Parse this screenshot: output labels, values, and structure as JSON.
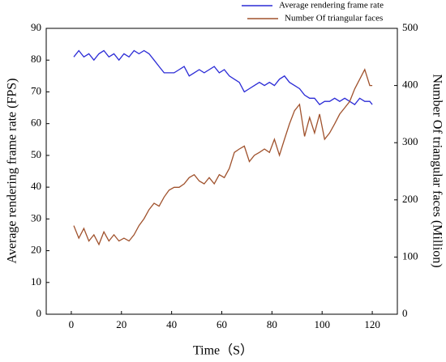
{
  "chart_data": {
    "type": "line",
    "xlabel": "Time（S）",
    "ylabel": "Average rendering frame rate (FPS)",
    "y2label": "Number Of triangular faces (Million)",
    "x": [
      1,
      3,
      5,
      7,
      9,
      11,
      13,
      15,
      17,
      19,
      21,
      23,
      25,
      27,
      29,
      31,
      33,
      35,
      37,
      39,
      41,
      43,
      45,
      47,
      49,
      51,
      53,
      55,
      57,
      59,
      61,
      63,
      65,
      67,
      69,
      71,
      73,
      75,
      77,
      79,
      81,
      83,
      85,
      87,
      89,
      91,
      93,
      95,
      97,
      99,
      101,
      103,
      105,
      107,
      109,
      111,
      113,
      115,
      117,
      119,
      120
    ],
    "xlim": [
      -10,
      130
    ],
    "xticks": [
      0,
      20,
      40,
      60,
      80,
      100,
      120
    ],
    "ylim": [
      0,
      90
    ],
    "yticks": [
      0,
      10,
      20,
      30,
      40,
      50,
      60,
      70,
      80,
      90
    ],
    "y2lim": [
      0,
      500
    ],
    "y2ticks": [
      0,
      100,
      200,
      300,
      400,
      500
    ],
    "series": [
      {
        "name": "Average rendering frame rate",
        "color": "#2b2bd6",
        "values": [
          81,
          83,
          81,
          82,
          80,
          82,
          83,
          81,
          82,
          80,
          82,
          81,
          83,
          82,
          83,
          82,
          80,
          78,
          76,
          76,
          76,
          77,
          78,
          75,
          76,
          77,
          76,
          77,
          78,
          76,
          77,
          75,
          74,
          73,
          70,
          71,
          72,
          73,
          72,
          73,
          72,
          74,
          75,
          73,
          72,
          71,
          69,
          68,
          68,
          66,
          67,
          67,
          68,
          67,
          68,
          67,
          66,
          68,
          67,
          67,
          66
        ]
      },
      {
        "name": "Number Of triangular faces",
        "color": "#a0522d",
        "axis": "y2",
        "values": [
          155,
          133,
          150,
          128,
          139,
          122,
          144,
          128,
          139,
          128,
          133,
          128,
          139,
          155,
          167,
          183,
          194,
          189,
          205,
          217,
          222,
          222,
          228,
          239,
          244,
          233,
          228,
          239,
          228,
          244,
          239,
          255,
          283,
          289,
          294,
          267,
          278,
          283,
          289,
          283,
          306,
          278,
          306,
          333,
          356,
          367,
          311,
          344,
          317,
          350,
          306,
          317,
          333,
          350,
          361,
          372,
          394,
          411,
          428,
          400,
          400
        ]
      }
    ]
  }
}
